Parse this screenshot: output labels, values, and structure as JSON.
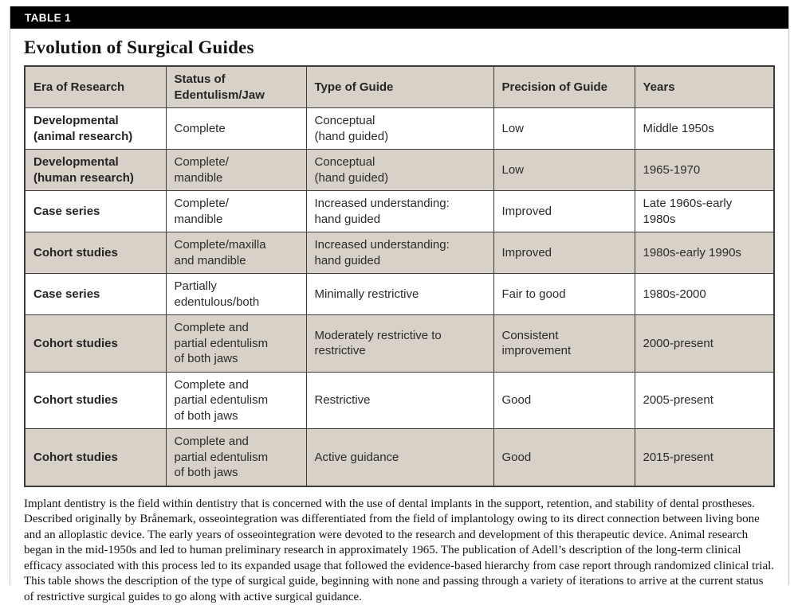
{
  "header": {
    "label": "TABLE 1",
    "title": "Evolution of Surgical Guides"
  },
  "table": {
    "columns": [
      "Era of Research",
      "Status of\nEdentulism/Jaw",
      "Type of Guide",
      "Precision of Guide",
      "Years"
    ],
    "rows": [
      [
        "Developmental\n(animal research)",
        "Complete",
        "Conceptual\n(hand guided)",
        "Low",
        "Middle 1950s"
      ],
      [
        "Developmental\n(human research)",
        "Complete/\nmandible",
        "Conceptual\n(hand guided)",
        "Low",
        "1965-1970"
      ],
      [
        "Case series",
        "Complete/\nmandible",
        "Increased understanding:\nhand guided",
        "Improved",
        "Late 1960s-early\n1980s"
      ],
      [
        "Cohort studies",
        "Complete/maxilla\nand mandible",
        "Increased understanding:\nhand guided",
        "Improved",
        "1980s-early 1990s"
      ],
      [
        "Case series",
        "Partially\nedentulous/both",
        "Minimally restrictive",
        "Fair to good",
        "1980s-2000"
      ],
      [
        "Cohort studies",
        "Complete and\npartial edentulism\nof both jaws",
        "Moderately restrictive to\nrestrictive",
        "Consistent\nimprovement",
        "2000-present"
      ],
      [
        "Cohort studies",
        "Complete and\npartial edentulism\nof both jaws",
        "Restrictive",
        "Good",
        "2005-present"
      ],
      [
        "Cohort studies",
        "Complete and\npartial edentulism\nof both jaws",
        "Active guidance",
        "Good",
        "2015-present"
      ]
    ]
  },
  "footnote": "Implant dentistry is the field within dentistry that is concerned with the use of dental implants in the support, retention, and stability of dental prostheses. Described originally by Brånemark, osseointegration was differentiated from the field of implantology owing to its direct connection between living bone and an alloplastic device. The early years of osseointegration were devoted to the research and development of this therapeutic device. Animal research began in the mid-1950s and led to human preliminary research in approximately 1965. The publication of Adell’s description of the long-term clinical efficacy associated with this process led to its expanded usage that followed the evidence-based hierarchy from case report through randomized clinical trial. This table shows the description of the type of surgical guide, beginning with none and passing through a variety of iterations to arrive at the current status of restrictive surgical guides to go along with active surgical guidance.",
  "colors": {
    "bar_background": "#000000",
    "row_shade": "#d7d1c7",
    "table_border": "#3c3c3c"
  }
}
